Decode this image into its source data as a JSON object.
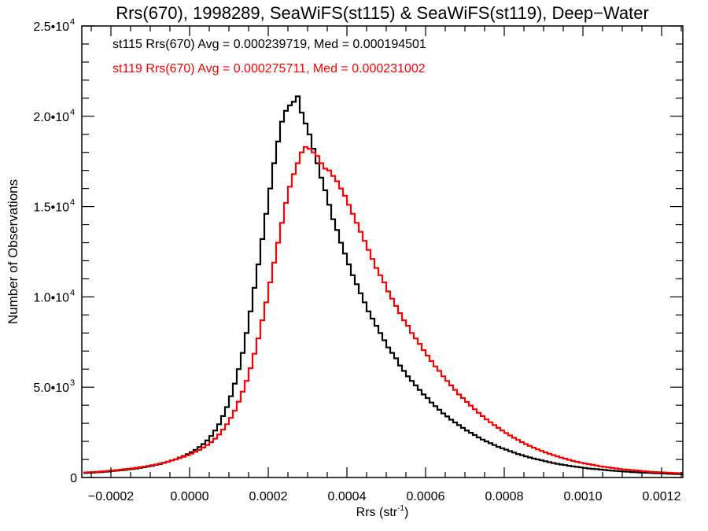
{
  "chart_data": {
    "type": "line",
    "subtype": "step-histogram",
    "title": "Rrs(670), 1998289, SeaWiFS(st115) & SeaWiFS(st119), Deep−Water",
    "xlabel": "Rrs (str",
    "xlabel_sup": "-1",
    "xlabel_close": ")",
    "ylabel": "Number of Observations",
    "xlim": [
      -0.000274,
      0.001254
    ],
    "ylim": [
      0,
      25000
    ],
    "grid": false,
    "x_ticks": [
      {
        "value": -0.0002,
        "label": "−0.0002"
      },
      {
        "value": 0.0,
        "label": "0.0000"
      },
      {
        "value": 0.0002,
        "label": "0.0002"
      },
      {
        "value": 0.0004,
        "label": "0.0004"
      },
      {
        "value": 0.0006,
        "label": "0.0006"
      },
      {
        "value": 0.0008,
        "label": "0.0008"
      },
      {
        "value": 0.001,
        "label": "0.0010"
      },
      {
        "value": 0.0012,
        "label": "0.0012"
      }
    ],
    "x_minor_step": 5e-05,
    "y_ticks": [
      {
        "value": 0,
        "mant": "0",
        "exp": ""
      },
      {
        "value": 5000,
        "mant": "5.0•10",
        "exp": "3"
      },
      {
        "value": 10000,
        "mant": "1.0•10",
        "exp": "4"
      },
      {
        "value": 15000,
        "mant": "1.5•10",
        "exp": "4"
      },
      {
        "value": 20000,
        "mant": "2.0•10",
        "exp": "4"
      },
      {
        "value": 25000,
        "mant": "2.5•10",
        "exp": "4"
      }
    ],
    "y_minor_step": 1000,
    "annotations": [
      {
        "text": "st115 Rrs(670) Avg = 0.000239719, Med = 0.000194501",
        "color": "#000000"
      },
      {
        "text": "st119 Rrs(670) Avg = 0.000275711, Med = 0.000231002",
        "color": "#ff0000"
      }
    ],
    "bin_start": -0.00027,
    "bin_width": 1e-05,
    "series": [
      {
        "name": "st115",
        "color": "#000000",
        "values": [
          250,
          260,
          270,
          290,
          300,
          320,
          330,
          360,
          380,
          400,
          420,
          450,
          470,
          500,
          540,
          570,
          610,
          650,
          700,
          750,
          810,
          870,
          940,
          1010,
          1100,
          1190,
          1290,
          1400,
          1530,
          1680,
          1850,
          2050,
          2300,
          2600,
          2950,
          3400,
          3900,
          4500,
          5200,
          6000,
          6900,
          8000,
          9200,
          10500,
          11800,
          13200,
          14600,
          16000,
          17400,
          18600,
          19700,
          20300,
          20600,
          20800,
          21100,
          20200,
          19600,
          19000,
          18200,
          17400,
          16600,
          15900,
          15100,
          14300,
          13700,
          13000,
          12400,
          11800,
          11200,
          10700,
          10200,
          9700,
          9200,
          8800,
          8400,
          8000,
          7600,
          7200,
          6900,
          6600,
          6200,
          5900,
          5600,
          5350,
          5100,
          4850,
          4600,
          4400,
          4150,
          3950,
          3750,
          3550,
          3380,
          3200,
          3050,
          2900,
          2750,
          2600,
          2480,
          2350,
          2220,
          2100,
          2000,
          1900,
          1800,
          1700,
          1620,
          1540,
          1460,
          1380,
          1300,
          1240,
          1170,
          1110,
          1050,
          1000,
          950,
          900,
          850,
          800,
          760,
          720,
          690,
          650,
          620,
          590,
          560,
          530,
          500,
          480,
          460,
          440,
          420,
          400,
          380,
          360,
          350,
          330,
          320,
          300,
          290,
          280,
          270,
          260,
          250,
          240,
          230,
          220,
          210,
          200,
          195,
          190,
          185
        ]
      },
      {
        "name": "st119",
        "color": "#ff0000",
        "values": [
          280,
          290,
          300,
          320,
          330,
          350,
          370,
          390,
          410,
          430,
          460,
          480,
          510,
          540,
          570,
          600,
          640,
          680,
          720,
          770,
          820,
          880,
          940,
          1000,
          1070,
          1150,
          1230,
          1320,
          1420,
          1530,
          1660,
          1800,
          1960,
          2150,
          2380,
          2650,
          2950,
          3300,
          3700,
          4200,
          4750,
          5350,
          6050,
          6850,
          7700,
          8700,
          9700,
          10800,
          11900,
          13000,
          14100,
          15200,
          16100,
          16800,
          17400,
          18000,
          18300,
          18200,
          18000,
          17800,
          17400,
          17100,
          17000,
          16700,
          16400,
          16000,
          15600,
          15100,
          14600,
          14100,
          13600,
          13100,
          12600,
          12100,
          11600,
          11200,
          10800,
          10300,
          9900,
          9500,
          9100,
          8700,
          8400,
          8000,
          7700,
          7400,
          7050,
          6750,
          6450,
          6150,
          5900,
          5600,
          5350,
          5100,
          4850,
          4600,
          4400,
          4180,
          3980,
          3780,
          3580,
          3400,
          3220,
          3060,
          2900,
          2750,
          2600,
          2460,
          2330,
          2200,
          2080,
          1960,
          1850,
          1750,
          1650,
          1560,
          1470,
          1390,
          1310,
          1240,
          1170,
          1100,
          1040,
          980,
          920,
          870,
          820,
          780,
          740,
          700,
          660,
          620,
          590,
          560,
          530,
          500,
          470,
          450,
          430,
          410,
          390,
          370,
          350,
          330,
          310,
          300,
          290,
          280,
          270,
          260,
          250,
          240,
          230
        ]
      }
    ]
  }
}
